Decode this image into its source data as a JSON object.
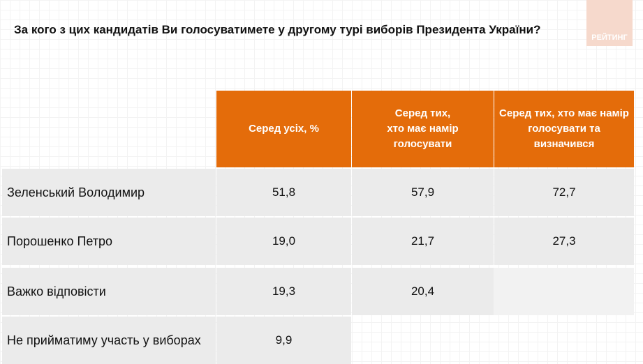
{
  "title": "За кого з цих кандидатів Ви голосуватимете у другому турі виборів Президента України?",
  "logo": "РЕЙТИНГ",
  "table": {
    "columns": [
      "Серед усіх, %",
      "Серед тих,\nхто має намір\nголосувати",
      "Серед тих, хто має намір голосувати та визначився"
    ],
    "rows": [
      {
        "label": "Зеленський Володимир",
        "values": [
          "51,8",
          "57,9",
          "72,7"
        ]
      },
      {
        "label": "Порошенко Петро",
        "values": [
          "19,0",
          "21,7",
          "27,3"
        ]
      },
      {
        "label": "Важко відповісти",
        "values": [
          "19,3",
          "20,4"
        ]
      },
      {
        "label": "Не прийматиму участь у виборах",
        "values": [
          "9,9"
        ]
      }
    ]
  }
}
